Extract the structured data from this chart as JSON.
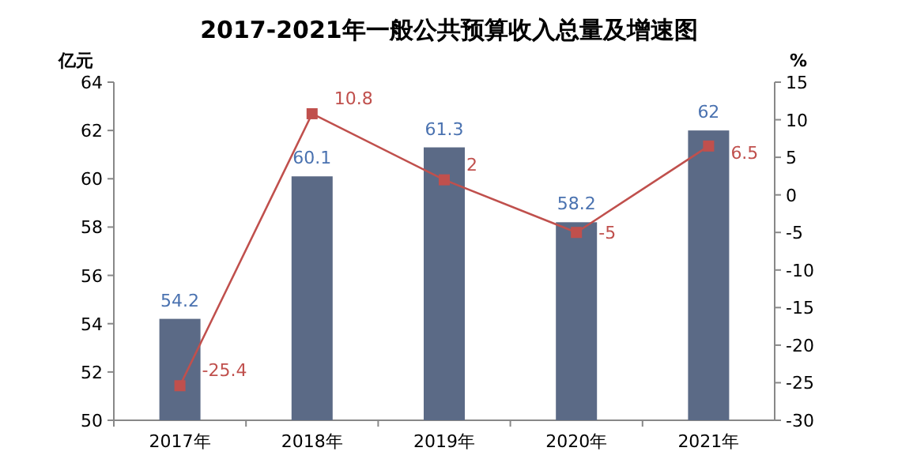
{
  "chart_data": {
    "type": "bar",
    "title": "2017-2021年一般公共预算收入总量及增速图",
    "ylabel": "亿元",
    "y2label": "%",
    "categories": [
      "2017年",
      "2018年",
      "2019年",
      "2020年",
      "2021年"
    ],
    "series": [
      {
        "color": "#5b6a86",
        "values": [
          54.2,
          60.1,
          61.3,
          58.2,
          62
        ]
      },
      {
        "type": "line",
        "axis": "y2",
        "color": "#c0504d",
        "marker": "square",
        "values": [
          -25.4,
          10.8,
          2,
          -5,
          6.5
        ]
      }
    ],
    "ylim": [
      50,
      64
    ],
    "yticks": [
      50,
      52,
      54,
      56,
      58,
      60,
      62,
      64
    ],
    "y2lim": [
      -30,
      15
    ],
    "y2ticks": [
      -30,
      -25,
      -20,
      -15,
      -10,
      -5,
      0,
      5,
      10,
      15
    ],
    "data_labels": true,
    "grid": false
  }
}
